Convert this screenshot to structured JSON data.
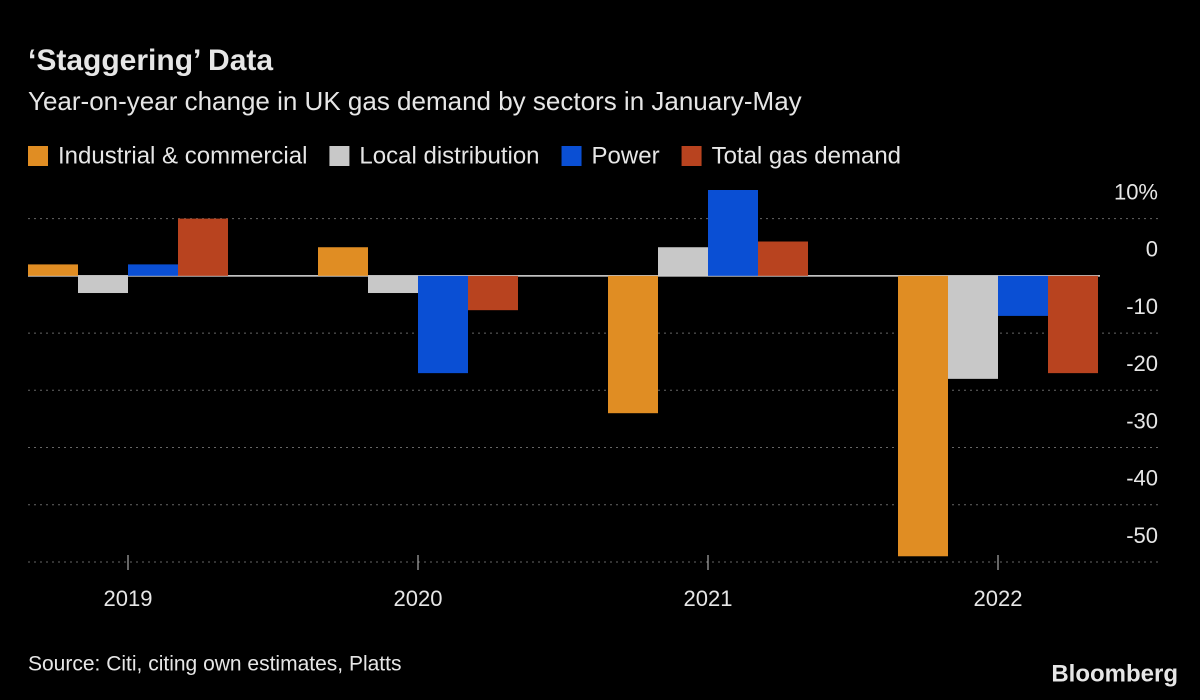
{
  "chart_data": {
    "type": "bar",
    "title": "‘Staggering’ Data",
    "subtitle": "Year-on-year change in UK gas demand by sectors in January-May",
    "categories": [
      "2019",
      "2020",
      "2021",
      "2022"
    ],
    "series": [
      {
        "name": "Industrial & commercial",
        "color": "#e08d23",
        "values": [
          2,
          5,
          -24,
          -49
        ]
      },
      {
        "name": "Local distribution",
        "color": "#c8c8c8",
        "values": [
          -3,
          -3,
          5,
          -18
        ]
      },
      {
        "name": "Power",
        "color": "#0a4fd4",
        "values": [
          2,
          -17,
          15,
          -7
        ]
      },
      {
        "name": "Total gas demand",
        "color": "#b8431f",
        "values": [
          10,
          -6,
          6,
          -17
        ]
      }
    ],
    "ylim": [
      -50,
      15
    ],
    "yticks": [
      {
        "value": 10,
        "label": "10%"
      },
      0,
      -10,
      -20,
      -30,
      -40,
      -50
    ],
    "grid": true,
    "legend": "top-left",
    "source": "Source: Citi, citing own estimates, Platts",
    "logo": "Bloomberg"
  }
}
